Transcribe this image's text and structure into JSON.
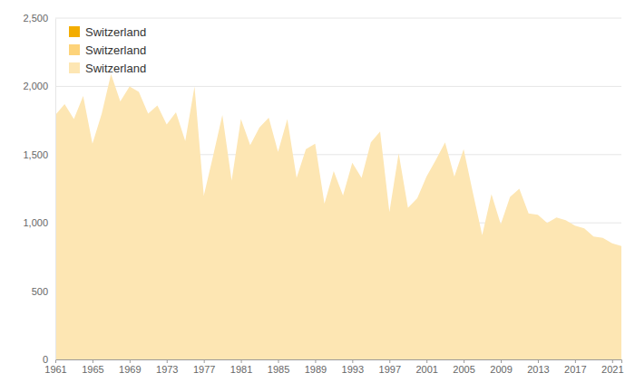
{
  "chart_data": {
    "type": "area",
    "x": [
      1961,
      1962,
      1963,
      1964,
      1965,
      1966,
      1967,
      1968,
      1969,
      1970,
      1971,
      1972,
      1973,
      1974,
      1975,
      1976,
      1977,
      1978,
      1979,
      1980,
      1981,
      1982,
      1983,
      1984,
      1985,
      1986,
      1987,
      1988,
      1989,
      1990,
      1991,
      1992,
      1993,
      1994,
      1995,
      1996,
      1997,
      1998,
      1999,
      2000,
      2001,
      2002,
      2003,
      2004,
      2005,
      2006,
      2007,
      2008,
      2009,
      2010,
      2011,
      2012,
      2013,
      2014,
      2015,
      2016,
      2017,
      2018,
      2019,
      2020,
      2021,
      2022
    ],
    "series": [
      {
        "name": "Switzerland",
        "color": "#f3ad00",
        "values": [
          null,
          null,
          null,
          null,
          null,
          null,
          null,
          null,
          null,
          null,
          null,
          null,
          null,
          null,
          null,
          null,
          null,
          null,
          null,
          null,
          null,
          null,
          null,
          null,
          null,
          null,
          null,
          null,
          null,
          null,
          null,
          null,
          null,
          null,
          null,
          null,
          null,
          null,
          null,
          null,
          null,
          null,
          null,
          null,
          null,
          null,
          null,
          null,
          null,
          null,
          null,
          null,
          null,
          null,
          null,
          null,
          null,
          null,
          null,
          null,
          null,
          null
        ]
      },
      {
        "name": "Switzerland",
        "color": "#fdd37a",
        "values": [
          null,
          null,
          null,
          null,
          null,
          null,
          null,
          null,
          null,
          null,
          null,
          null,
          null,
          null,
          null,
          null,
          null,
          null,
          null,
          null,
          null,
          null,
          null,
          null,
          null,
          null,
          null,
          null,
          null,
          null,
          null,
          null,
          null,
          null,
          null,
          null,
          null,
          null,
          null,
          null,
          null,
          null,
          null,
          null,
          null,
          null,
          null,
          null,
          null,
          null,
          null,
          null,
          null,
          null,
          null,
          null,
          null,
          null,
          null,
          null,
          null,
          null
        ]
      },
      {
        "name": "Switzerland",
        "color": "#fde6b3",
        "values": [
          1790,
          1870,
          1760,
          1930,
          1580,
          1800,
          2090,
          1890,
          2000,
          1960,
          1800,
          1860,
          1720,
          1810,
          1600,
          2000,
          1200,
          1490,
          1790,
          1310,
          1760,
          1570,
          1700,
          1770,
          1520,
          1760,
          1330,
          1540,
          1580,
          1140,
          1380,
          1200,
          1440,
          1330,
          1590,
          1670,
          1080,
          1510,
          1110,
          1180,
          1340,
          1460,
          1590,
          1340,
          1540,
          1220,
          910,
          1210,
          990,
          1190,
          1250,
          1070,
          1060,
          1000,
          1040,
          1020,
          980,
          960,
          900,
          890,
          850,
          830
        ]
      }
    ],
    "xlim": [
      1961,
      2022
    ],
    "xticks": [
      1961,
      1965,
      1969,
      1973,
      1977,
      1981,
      1985,
      1989,
      1993,
      1997,
      2001,
      2005,
      2009,
      2013,
      2017,
      2021
    ],
    "ylim": [
      0,
      2500
    ],
    "yticks": [
      0,
      500,
      {
        "value": 1000,
        "label": "1,000"
      },
      {
        "value": 1500,
        "label": "1,500"
      },
      {
        "value": 2000,
        "label": "2,000"
      },
      {
        "value": 2500,
        "label": "2,500"
      }
    ],
    "grid": true,
    "legend": "top-left"
  }
}
